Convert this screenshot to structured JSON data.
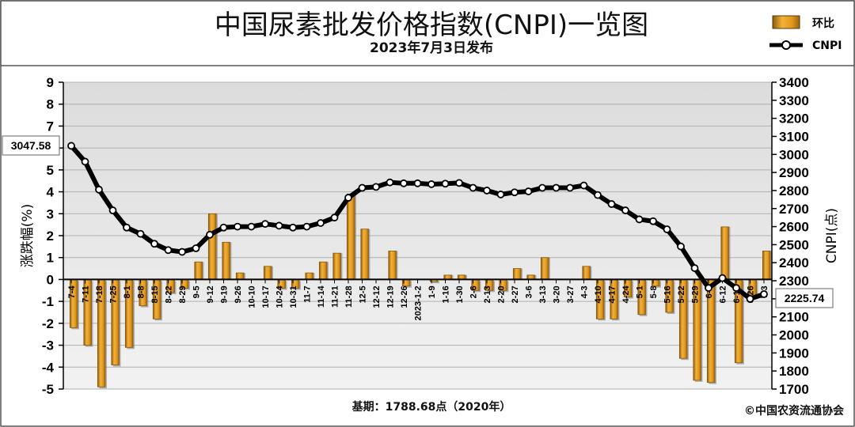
{
  "chart_data": {
    "type": "bar+line",
    "title": "中国尿素批发价格指数(CNPI)一览图",
    "subtitle": "2023年7月3日发布",
    "categories": [
      "7-4",
      "7-11",
      "7-18",
      "7-25",
      "8-1",
      "8-8",
      "8-15",
      "8-22",
      "8-29",
      "9-5",
      "9-12",
      "9-19",
      "9-26",
      "10-10",
      "10-17",
      "10-24",
      "10-31",
      "11-7",
      "11-14",
      "11-21",
      "11-28",
      "12-5",
      "12-12",
      "12-19",
      "12-26",
      "2023-1-2",
      "1-9",
      "1-16",
      "1-30",
      "2-6",
      "2-13",
      "2-20",
      "2-27",
      "3-6",
      "3-13",
      "3-20",
      "3-27",
      "4-3",
      "4-10",
      "4-17",
      "4-24",
      "5-1",
      "5-8",
      "5-16",
      "5-22",
      "5-29",
      "6-5",
      "6-12",
      "6-19",
      "6-26",
      "7-3"
    ],
    "series": [
      {
        "name": "环比",
        "type": "bar",
        "axis": "left",
        "unit": "%",
        "values": [
          -2.2,
          -3.0,
          -4.9,
          -3.9,
          -3.1,
          -1.2,
          -1.8,
          -0.6,
          -0.4,
          0.8,
          3.0,
          1.7,
          0.3,
          0.0,
          0.6,
          -0.4,
          -0.4,
          0.3,
          0.8,
          1.2,
          3.9,
          2.3,
          0.0,
          1.3,
          -0.3,
          0.0,
          -0.1,
          0.2,
          0.2,
          -0.5,
          -0.5,
          -0.5,
          0.5,
          0.2,
          1.0,
          0.0,
          0.0,
          0.6,
          -1.8,
          -1.8,
          -0.8,
          -1.6,
          -0.3,
          -1.5,
          -3.6,
          -4.6,
          -4.7,
          2.4,
          -3.8,
          -0.8,
          1.3
        ]
      },
      {
        "name": "CNPI",
        "type": "line",
        "axis": "right",
        "unit": "点",
        "values": [
          3047.58,
          2960,
          2805,
          2690,
          2595,
          2560,
          2505,
          2470,
          2460,
          2480,
          2555,
          2595,
          2600,
          2600,
          2615,
          2605,
          2595,
          2600,
          2620,
          2650,
          2760,
          2815,
          2820,
          2845,
          2840,
          2840,
          2835,
          2838,
          2842,
          2815,
          2800,
          2778,
          2790,
          2795,
          2815,
          2815,
          2815,
          2828,
          2775,
          2725,
          2690,
          2640,
          2630,
          2585,
          2490,
          2370,
          2260,
          2315,
          2260,
          2200,
          2225.74
        ]
      }
    ],
    "y_left": {
      "label": "涨跌幅(%)",
      "min": -5,
      "max": 9,
      "ticks": [
        -5,
        -4,
        -3,
        -2,
        -1,
        0,
        1,
        2,
        3,
        4,
        5,
        6,
        7,
        8,
        9
      ]
    },
    "y_right": {
      "label": "CNPI(点)",
      "min": 1700,
      "max": 3400,
      "ticks": [
        1700,
        1800,
        1900,
        2000,
        2100,
        2200,
        2300,
        2400,
        2500,
        2600,
        2700,
        2800,
        2900,
        3000,
        3100,
        3200,
        3300,
        3400
      ]
    },
    "grid": true,
    "legend_position": "top-right",
    "callouts": {
      "start": "3047.58",
      "end": "2225.74"
    },
    "footer": {
      "base_period": "基期：1788.68点（2020年）",
      "credit": "©中国农资流通协会"
    },
    "colors": {
      "bar": "#E39A1E",
      "bar_dark": "#8A5A0C",
      "line": "#000000",
      "marker_fill": "#ffffff",
      "grid": "#B0B0B0",
      "plot_bg": "#E8E8E8"
    }
  }
}
